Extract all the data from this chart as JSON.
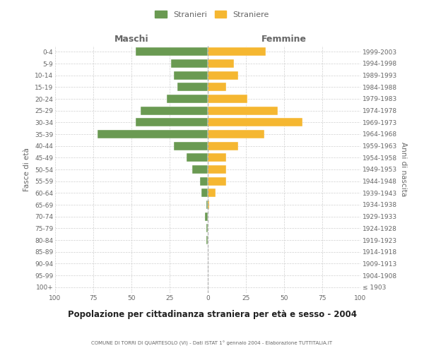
{
  "age_groups": [
    "100+",
    "95-99",
    "90-94",
    "85-89",
    "80-84",
    "75-79",
    "70-74",
    "65-69",
    "60-64",
    "55-59",
    "50-54",
    "45-49",
    "40-44",
    "35-39",
    "30-34",
    "25-29",
    "20-24",
    "15-19",
    "10-14",
    "5-9",
    "0-4"
  ],
  "birth_years": [
    "≤ 1903",
    "1904-1908",
    "1909-1913",
    "1914-1918",
    "1919-1923",
    "1924-1928",
    "1929-1933",
    "1934-1938",
    "1939-1943",
    "1944-1948",
    "1949-1953",
    "1954-1958",
    "1959-1963",
    "1964-1968",
    "1969-1973",
    "1974-1978",
    "1979-1983",
    "1984-1988",
    "1989-1993",
    "1994-1998",
    "1999-2003"
  ],
  "maschi": [
    0,
    0,
    0,
    0,
    1,
    1,
    2,
    1,
    4,
    5,
    10,
    14,
    22,
    72,
    47,
    44,
    27,
    20,
    22,
    24,
    47
  ],
  "femmine": [
    0,
    0,
    0,
    0,
    0,
    0,
    0,
    1,
    5,
    12,
    12,
    12,
    20,
    37,
    62,
    46,
    26,
    12,
    20,
    17,
    38
  ],
  "maschi_color": "#6a9a52",
  "femmine_color": "#f5b731",
  "grid_color": "#cccccc",
  "center_line_color": "#aaaaaa",
  "title": "Popolazione per cittadinanza straniera per età e sesso - 2004",
  "subtitle": "COMUNE DI TORRI DI QUARTESOLO (VI) - Dati ISTAT 1° gennaio 2004 - Elaborazione TUTTITALIA.IT",
  "xlabel_left": "Maschi",
  "xlabel_right": "Femmine",
  "ylabel_left": "Fasce di età",
  "ylabel_right": "Anni di nascita",
  "legend_maschi": "Stranieri",
  "legend_femmine": "Straniere",
  "xlim": 100,
  "bg_color": "#ffffff",
  "text_color": "#666666",
  "title_color": "#222222"
}
